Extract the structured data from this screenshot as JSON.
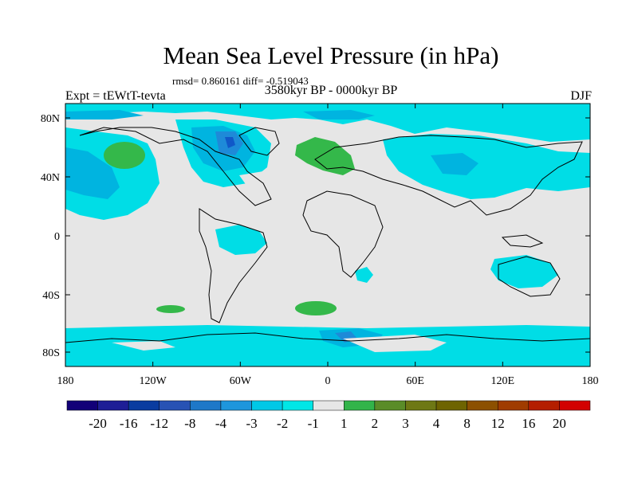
{
  "title": "Mean Sea Level Pressure (in hPa)",
  "stats": "rmsd= 0.860161 diff= -0.519043",
  "experiment": "Expt = tEWtT-tevta",
  "period": "3580kyr BP - 0000kyr BP",
  "season": "DJF",
  "colors": {
    "background_field": "#e6e6e6",
    "light_negative": "#00dde6",
    "medium_negative": "#00b4e0",
    "stronger_negative": "#1e8ad8",
    "strongest_negative": "#1058c8",
    "positive": "#34b84a"
  },
  "axes": {
    "x_ticks": [
      "180",
      "120W",
      "60W",
      "0",
      "60E",
      "120E",
      "180"
    ],
    "y_ticks": [
      "80N",
      "40N",
      "0",
      "40S",
      "80S"
    ]
  },
  "colorbar": {
    "colors": [
      "#120078",
      "#1e1e96",
      "#0a3ca0",
      "#2852b4",
      "#1e78c8",
      "#1e96dc",
      "#00c8e6",
      "#00e6e6",
      "#e6e6e6",
      "#32b44a",
      "#5a8c28",
      "#6e7814",
      "#6e6400",
      "#8c5000",
      "#a03c00",
      "#b41e00",
      "#d20000"
    ],
    "labels": [
      "-20",
      "-16",
      "-12",
      "-8",
      "-4",
      "-3",
      "-2",
      "-1",
      "1",
      "2",
      "3",
      "4",
      "8",
      "12",
      "16",
      "20"
    ]
  }
}
